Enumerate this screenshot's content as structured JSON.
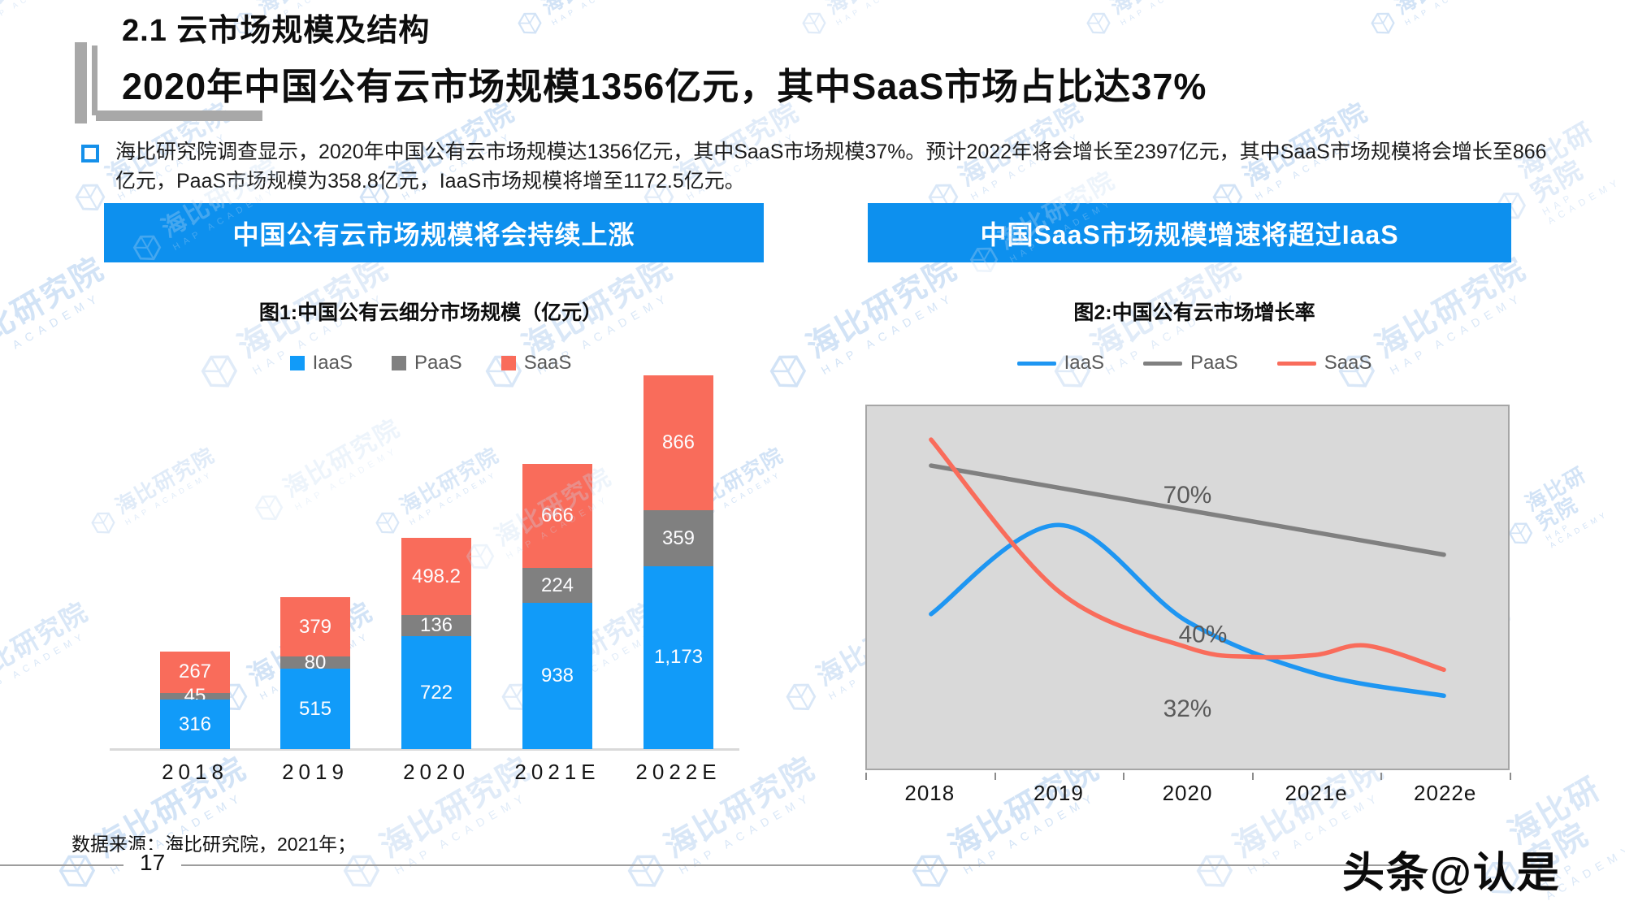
{
  "header": {
    "title_line1": "2.1 云市场规模及结构",
    "title_line2": "2020年中国公有云市场规模1356亿元，其中SaaS市场占比达37%"
  },
  "intro": {
    "text": "海比研究院调查显示，2020年中国公有云市场规模达1356亿元，其中SaaS市场规模37%。预计2022年将会增长至2397亿元，其中SaaS市场规模将会增长至866亿元，PaaS市场规模为358.8亿元，IaaS市场规模将增至1172.5亿元。"
  },
  "banners": {
    "left": "中国公有云市场规模将会持续上涨",
    "right": "中国SaaS市场规模增速将超过IaaS"
  },
  "colors": {
    "banner_blue": "#0d90ee",
    "bar_blue": "#119bf9",
    "bar_gray": "#808080",
    "bar_red": "#f96c5b",
    "line_blue": "#1e96f2",
    "line_gray": "#808080",
    "line_red": "#f96c5b",
    "plot_bg": "#d9d9d9",
    "watermark": "#c7dcf4"
  },
  "chart_data": [
    {
      "type": "bar",
      "title": "图1:中国公有云细分市场规模（亿元）",
      "stacked": true,
      "categories": [
        "2018",
        "2019",
        "2020",
        "2021E",
        "2022E"
      ],
      "series": [
        {
          "name": "IaaS",
          "color_key": "bar_blue",
          "values": [
            316,
            515,
            722,
            938,
            1173
          ],
          "labels": [
            "316",
            "515",
            "722",
            "938",
            "1,173"
          ]
        },
        {
          "name": "PaaS",
          "color_key": "bar_gray",
          "values": [
            45,
            80,
            136,
            224,
            359
          ],
          "labels": [
            "45",
            "80",
            "136",
            "224",
            "359"
          ]
        },
        {
          "name": "SaaS",
          "color_key": "bar_red",
          "values": [
            267,
            379,
            498.2,
            666,
            866
          ],
          "labels": [
            "267",
            "379",
            "498.2",
            "666",
            "866"
          ]
        }
      ],
      "ylim": [
        0,
        2398
      ],
      "legend_position": "top",
      "grid": false
    },
    {
      "type": "line",
      "title": "图2:中国公有云市场增长率",
      "categories": [
        "2018",
        "2019",
        "2020",
        "2021e",
        "2022e"
      ],
      "ylim": [
        0,
        98
      ],
      "unit": "%",
      "series": [
        {
          "name": "IaaS",
          "color_key": "line_blue",
          "points": [
            [
              0,
              42
            ],
            [
              1,
              66
            ],
            [
              2,
              40
            ],
            [
              3,
              26
            ],
            [
              4,
              20
            ]
          ]
        },
        {
          "name": "PaaS",
          "color_key": "line_gray",
          "points": [
            [
              0,
              82
            ],
            [
              4,
              58
            ]
          ]
        },
        {
          "name": "SaaS",
          "color_key": "line_red",
          "points": [
            [
              0,
              89
            ],
            [
              1,
              48
            ],
            [
              2,
              33
            ],
            [
              2.5,
              30.5
            ],
            [
              3,
              31
            ],
            [
              3.4,
              33.5
            ],
            [
              4,
              27
            ]
          ]
        }
      ],
      "annotations": [
        {
          "text": "70%",
          "x": 2,
          "y": 74
        },
        {
          "text": "40%",
          "x": 2.12,
          "y": 36.5
        },
        {
          "text": "32%",
          "x": 2.0,
          "y": 16.5
        }
      ],
      "legend_position": "top",
      "grid": false
    }
  ],
  "footer": {
    "source": "数据来源：海比研究院，2021年；",
    "page_number": "17",
    "brand": "头条@认是"
  },
  "watermark": {
    "text": "海比研究院",
    "subtext": "HAP ACADEMY"
  }
}
